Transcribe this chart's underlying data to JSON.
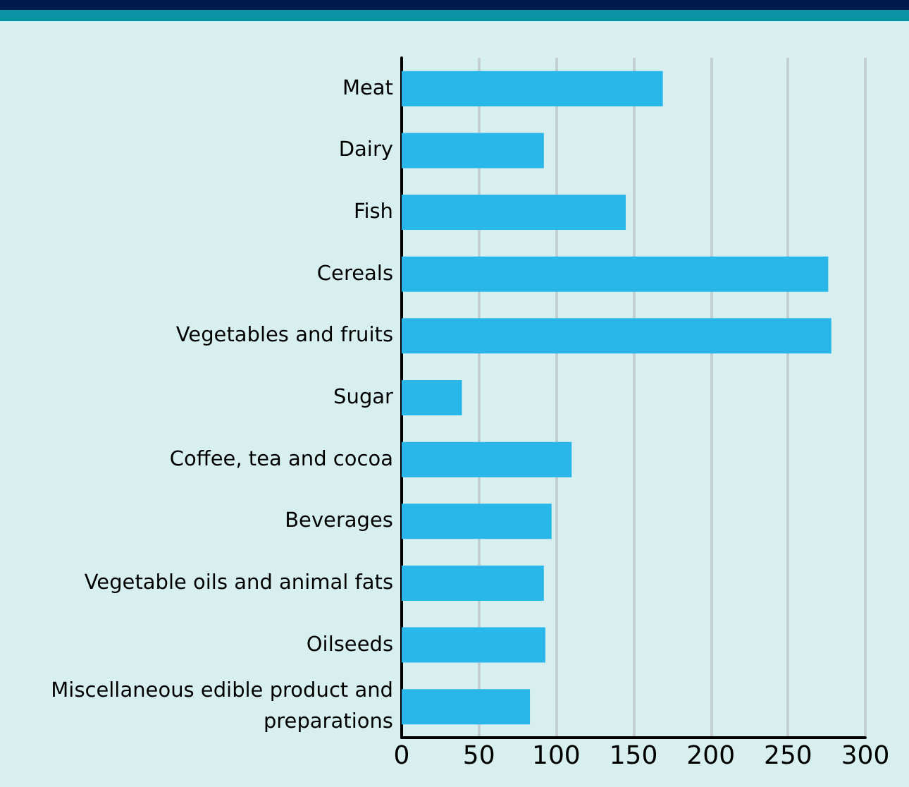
{
  "chart_data": {
    "type": "bar",
    "orientation": "horizontal",
    "categories": [
      "Meat",
      "Dairy",
      "Fish",
      "Cereals",
      "Vegetables and fruits",
      "Sugar",
      "Coffee, tea and cocoa",
      "Beverages",
      "Vegetable oils and animal fats",
      "Oilseeds",
      "Miscellaneous edible product and preparations"
    ],
    "values": [
      169,
      92,
      145,
      276,
      278,
      39,
      110,
      97,
      92,
      93,
      83
    ],
    "color": "#29b7e9",
    "xlim": [
      0,
      300
    ],
    "xticks": [
      0,
      50,
      100,
      150,
      200,
      250,
      300
    ],
    "grid": "x"
  }
}
